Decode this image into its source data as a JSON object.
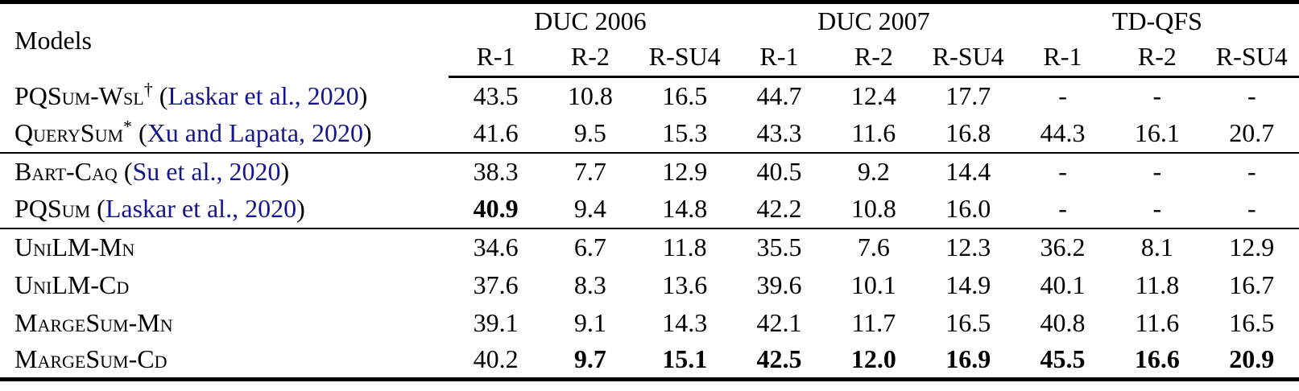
{
  "table": {
    "link_color": "#16168B",
    "models_header": "Models",
    "groups": [
      {
        "label": "DUC 2006",
        "metrics": [
          "R-1",
          "R-2",
          "R-SU4"
        ]
      },
      {
        "label": "DUC 2007",
        "metrics": [
          "R-1",
          "R-2",
          "R-SU4"
        ]
      },
      {
        "label": "TD-QFS",
        "metrics": [
          "R-1",
          "R-2",
          "R-SU4"
        ]
      }
    ],
    "rows": [
      {
        "model": "PQSum-Wsl",
        "superscript": "†",
        "citation": "Laskar et al., 2020",
        "values": [
          "43.5",
          "10.8",
          "16.5",
          "44.7",
          "12.4",
          "17.7",
          "-",
          "-",
          "-"
        ],
        "bold": [],
        "section_start": false
      },
      {
        "model": "QuerySum",
        "superscript": "*",
        "citation": "Xu and Lapata, 2020",
        "values": [
          "41.6",
          "9.5",
          "15.3",
          "43.3",
          "11.6",
          "16.8",
          "44.3",
          "16.1",
          "20.7"
        ],
        "bold": [],
        "section_start": false
      },
      {
        "model": "Bart-Caq",
        "superscript": "",
        "citation": "Su et al., 2020",
        "values": [
          "38.3",
          "7.7",
          "12.9",
          "40.5",
          "9.2",
          "14.4",
          "-",
          "-",
          "-"
        ],
        "bold": [],
        "section_start": true
      },
      {
        "model": "PQSum",
        "superscript": "",
        "citation": "Laskar et al., 2020",
        "values": [
          "40.9",
          "9.4",
          "14.8",
          "42.2",
          "10.8",
          "16.0",
          "-",
          "-",
          "-"
        ],
        "bold": [
          0
        ],
        "section_start": false
      },
      {
        "model": "UniLM-Mn",
        "superscript": "",
        "citation": "",
        "values": [
          "34.6",
          "6.7",
          "11.8",
          "35.5",
          "7.6",
          "12.3",
          "36.2",
          "8.1",
          "12.9"
        ],
        "bold": [],
        "section_start": true
      },
      {
        "model": "UniLM-Cd",
        "superscript": "",
        "citation": "",
        "values": [
          "37.6",
          "8.3",
          "13.6",
          "39.6",
          "10.1",
          "14.9",
          "40.1",
          "11.8",
          "16.7"
        ],
        "bold": [],
        "section_start": false
      },
      {
        "model": "MargeSum-Mn",
        "superscript": "",
        "citation": "",
        "values": [
          "39.1",
          "9.1",
          "14.3",
          "42.1",
          "11.7",
          "16.5",
          "40.8",
          "11.6",
          "16.5"
        ],
        "bold": [],
        "section_start": false
      },
      {
        "model": "MargeSum-Cd",
        "superscript": "",
        "citation": "",
        "values": [
          "40.2",
          "9.7",
          "15.1",
          "42.5",
          "12.0",
          "16.9",
          "45.5",
          "16.6",
          "20.9"
        ],
        "bold": [
          1,
          2,
          3,
          4,
          5,
          6,
          7,
          8
        ],
        "section_start": false
      }
    ]
  }
}
